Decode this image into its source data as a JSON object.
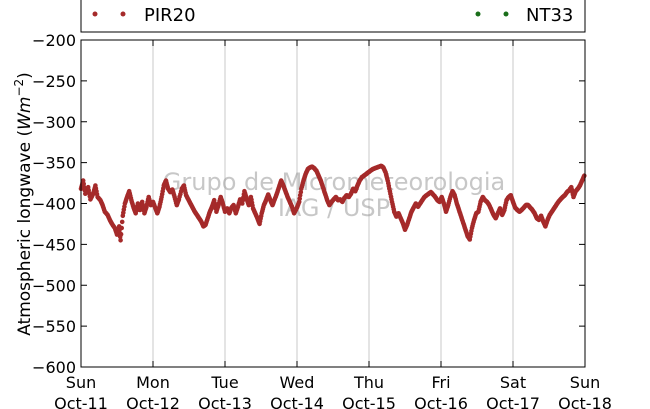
{
  "chart_data": {
    "type": "scatter",
    "ylabel": "Atmospheric longwave (Wm⁻²)",
    "ylabel_text": "Atmospheric longwave (",
    "ylabel_unit_base": "Wm",
    "ylabel_unit_exp": "−2",
    "ylabel_close": ")",
    "ylim": [
      -600,
      -200
    ],
    "yticks": [
      -200,
      -250,
      -300,
      -350,
      -400,
      -450,
      -500,
      -550,
      -600
    ],
    "ytick_labels": [
      "−200",
      "−250",
      "−300",
      "−350",
      "−400",
      "−450",
      "−500",
      "−550",
      "−600"
    ],
    "xlim": [
      0,
      7
    ],
    "xticks": [
      0,
      1,
      2,
      3,
      4,
      5,
      6,
      7
    ],
    "xtick_days": [
      "Sun",
      "Mon",
      "Tue",
      "Wed",
      "Thu",
      "Fri",
      "Sat",
      "Sun"
    ],
    "xtick_dates": [
      "Oct-11",
      "Oct-12",
      "Oct-13",
      "Oct-14",
      "Oct-15",
      "Oct-16",
      "Oct-17",
      "Oct-18"
    ],
    "grid": "vertical",
    "legend_placement": "top",
    "watermark": [
      "Grupo de Micrometeorologia",
      "IAG / USP"
    ],
    "series": [
      {
        "name": "PIR20",
        "color": "#a52a2a",
        "points": [
          [
            0.0,
            -382
          ],
          [
            0.03,
            -372
          ],
          [
            0.06,
            -388
          ],
          [
            0.1,
            -380
          ],
          [
            0.13,
            -395
          ],
          [
            0.17,
            -388
          ],
          [
            0.2,
            -378
          ],
          [
            0.23,
            -392
          ],
          [
            0.27,
            -396
          ],
          [
            0.3,
            -402
          ],
          [
            0.33,
            -410
          ],
          [
            0.37,
            -414
          ],
          [
            0.4,
            -420
          ],
          [
            0.43,
            -425
          ],
          [
            0.47,
            -430
          ],
          [
            0.5,
            -438
          ],
          [
            0.53,
            -428
          ],
          [
            0.55,
            -445
          ],
          [
            0.58,
            -415
          ],
          [
            0.61,
            -400
          ],
          [
            0.64,
            -392
          ],
          [
            0.67,
            -385
          ],
          [
            0.7,
            -396
          ],
          [
            0.73,
            -405
          ],
          [
            0.76,
            -412
          ],
          [
            0.79,
            -400
          ],
          [
            0.82,
            -408
          ],
          [
            0.85,
            -398
          ],
          [
            0.88,
            -412
          ],
          [
            0.91,
            -404
          ],
          [
            0.94,
            -392
          ],
          [
            0.97,
            -402
          ],
          [
            1.0,
            -398
          ],
          [
            1.03,
            -405
          ],
          [
            1.06,
            -412
          ],
          [
            1.09,
            -404
          ],
          [
            1.12,
            -392
          ],
          [
            1.15,
            -378
          ],
          [
            1.18,
            -372
          ],
          [
            1.21,
            -382
          ],
          [
            1.24,
            -386
          ],
          [
            1.27,
            -383
          ],
          [
            1.3,
            -392
          ],
          [
            1.33,
            -402
          ],
          [
            1.36,
            -395
          ],
          [
            1.4,
            -382
          ],
          [
            1.43,
            -378
          ],
          [
            1.46,
            -390
          ],
          [
            1.49,
            -395
          ],
          [
            1.52,
            -400
          ],
          [
            1.55,
            -405
          ],
          [
            1.58,
            -410
          ],
          [
            1.61,
            -414
          ],
          [
            1.64,
            -418
          ],
          [
            1.67,
            -422
          ],
          [
            1.7,
            -428
          ],
          [
            1.73,
            -426
          ],
          [
            1.76,
            -418
          ],
          [
            1.79,
            -410
          ],
          [
            1.82,
            -404
          ],
          [
            1.85,
            -396
          ],
          [
            1.88,
            -410
          ],
          [
            1.91,
            -402
          ],
          [
            1.94,
            -392
          ],
          [
            1.97,
            -400
          ],
          [
            2.0,
            -410
          ],
          [
            2.03,
            -406
          ],
          [
            2.06,
            -412
          ],
          [
            2.09,
            -405
          ],
          [
            2.12,
            -402
          ],
          [
            2.15,
            -412
          ],
          [
            2.18,
            -404
          ],
          [
            2.21,
            -395
          ],
          [
            2.24,
            -400
          ],
          [
            2.27,
            -385
          ],
          [
            2.3,
            -394
          ],
          [
            2.33,
            -402
          ],
          [
            2.36,
            -392
          ],
          [
            2.39,
            -406
          ],
          [
            2.42,
            -412
          ],
          [
            2.45,
            -418
          ],
          [
            2.48,
            -425
          ],
          [
            2.51,
            -412
          ],
          [
            2.54,
            -402
          ],
          [
            2.57,
            -396
          ],
          [
            2.6,
            -389
          ],
          [
            2.63,
            -396
          ],
          [
            2.66,
            -402
          ],
          [
            2.69,
            -395
          ],
          [
            2.72,
            -388
          ],
          [
            2.75,
            -380
          ],
          [
            2.78,
            -372
          ],
          [
            2.81,
            -378
          ],
          [
            2.84,
            -385
          ],
          [
            2.87,
            -392
          ],
          [
            2.9,
            -398
          ],
          [
            2.93,
            -404
          ],
          [
            2.96,
            -412
          ],
          [
            3.0,
            -405
          ],
          [
            3.03,
            -398
          ],
          [
            3.06,
            -382
          ],
          [
            3.09,
            -372
          ],
          [
            3.12,
            -364
          ],
          [
            3.15,
            -358
          ],
          [
            3.18,
            -356
          ],
          [
            3.21,
            -355
          ],
          [
            3.24,
            -357
          ],
          [
            3.27,
            -360
          ],
          [
            3.3,
            -366
          ],
          [
            3.33,
            -372
          ],
          [
            3.36,
            -380
          ],
          [
            3.39,
            -388
          ],
          [
            3.42,
            -396
          ],
          [
            3.45,
            -402
          ],
          [
            3.48,
            -398
          ],
          [
            3.51,
            -395
          ],
          [
            3.54,
            -392
          ],
          [
            3.57,
            -396
          ],
          [
            3.6,
            -395
          ],
          [
            3.63,
            -398
          ],
          [
            3.66,
            -393
          ],
          [
            3.69,
            -390
          ],
          [
            3.72,
            -392
          ],
          [
            3.75,
            -388
          ],
          [
            3.78,
            -382
          ],
          [
            3.81,
            -385
          ],
          [
            3.84,
            -378
          ],
          [
            3.87,
            -372
          ],
          [
            3.9,
            -368
          ],
          [
            3.93,
            -366
          ],
          [
            3.96,
            -364
          ],
          [
            3.99,
            -362
          ],
          [
            4.02,
            -360
          ],
          [
            4.05,
            -358
          ],
          [
            4.08,
            -357
          ],
          [
            4.11,
            -356
          ],
          [
            4.14,
            -355
          ],
          [
            4.17,
            -354
          ],
          [
            4.2,
            -356
          ],
          [
            4.23,
            -362
          ],
          [
            4.26,
            -372
          ],
          [
            4.29,
            -385
          ],
          [
            4.32,
            -398
          ],
          [
            4.35,
            -410
          ],
          [
            4.38,
            -416
          ],
          [
            4.41,
            -412
          ],
          [
            4.44,
            -418
          ],
          [
            4.47,
            -424
          ],
          [
            4.5,
            -432
          ],
          [
            4.53,
            -426
          ],
          [
            4.56,
            -418
          ],
          [
            4.59,
            -410
          ],
          [
            4.62,
            -405
          ],
          [
            4.65,
            -400
          ],
          [
            4.68,
            -404
          ],
          [
            4.71,
            -400
          ],
          [
            4.74,
            -396
          ],
          [
            4.77,
            -392
          ],
          [
            4.8,
            -390
          ],
          [
            4.83,
            -388
          ],
          [
            4.86,
            -386
          ],
          [
            4.89,
            -389
          ],
          [
            4.92,
            -392
          ],
          [
            4.95,
            -396
          ],
          [
            4.98,
            -398
          ],
          [
            5.01,
            -392
          ],
          [
            5.04,
            -400
          ],
          [
            5.07,
            -410
          ],
          [
            5.1,
            -402
          ],
          [
            5.13,
            -392
          ],
          [
            5.16,
            -385
          ],
          [
            5.19,
            -390
          ],
          [
            5.22,
            -400
          ],
          [
            5.25,
            -408
          ],
          [
            5.28,
            -416
          ],
          [
            5.31,
            -424
          ],
          [
            5.34,
            -432
          ],
          [
            5.37,
            -440
          ],
          [
            5.4,
            -444
          ],
          [
            5.43,
            -430
          ],
          [
            5.46,
            -420
          ],
          [
            5.49,
            -412
          ],
          [
            5.52,
            -410
          ],
          [
            5.55,
            -398
          ],
          [
            5.58,
            -392
          ],
          [
            5.61,
            -396
          ],
          [
            5.64,
            -398
          ],
          [
            5.67,
            -402
          ],
          [
            5.7,
            -408
          ],
          [
            5.73,
            -414
          ],
          [
            5.76,
            -418
          ],
          [
            5.79,
            -412
          ],
          [
            5.82,
            -406
          ],
          [
            5.85,
            -414
          ],
          [
            5.88,
            -408
          ],
          [
            5.91,
            -396
          ],
          [
            5.94,
            -392
          ],
          [
            5.97,
            -390
          ],
          [
            6.0,
            -398
          ],
          [
            6.03,
            -405
          ],
          [
            6.06,
            -408
          ],
          [
            6.09,
            -410
          ],
          [
            6.12,
            -408
          ],
          [
            6.15,
            -405
          ],
          [
            6.18,
            -402
          ],
          [
            6.21,
            -402
          ],
          [
            6.24,
            -405
          ],
          [
            6.27,
            -408
          ],
          [
            6.3,
            -412
          ],
          [
            6.33,
            -418
          ],
          [
            6.36,
            -420
          ],
          [
            6.39,
            -415
          ],
          [
            6.42,
            -422
          ],
          [
            6.45,
            -428
          ],
          [
            6.48,
            -420
          ],
          [
            6.51,
            -414
          ],
          [
            6.54,
            -410
          ],
          [
            6.57,
            -406
          ],
          [
            6.6,
            -402
          ],
          [
            6.63,
            -398
          ],
          [
            6.66,
            -395
          ],
          [
            6.69,
            -392
          ],
          [
            6.72,
            -390
          ],
          [
            6.75,
            -386
          ],
          [
            6.78,
            -384
          ],
          [
            6.81,
            -380
          ],
          [
            6.84,
            -392
          ],
          [
            6.87,
            -385
          ],
          [
            6.9,
            -382
          ],
          [
            6.93,
            -378
          ],
          [
            6.96,
            -372
          ],
          [
            6.99,
            -366
          ]
        ]
      },
      {
        "name": "NT33",
        "color": "#1a6e1a",
        "points": []
      }
    ]
  }
}
